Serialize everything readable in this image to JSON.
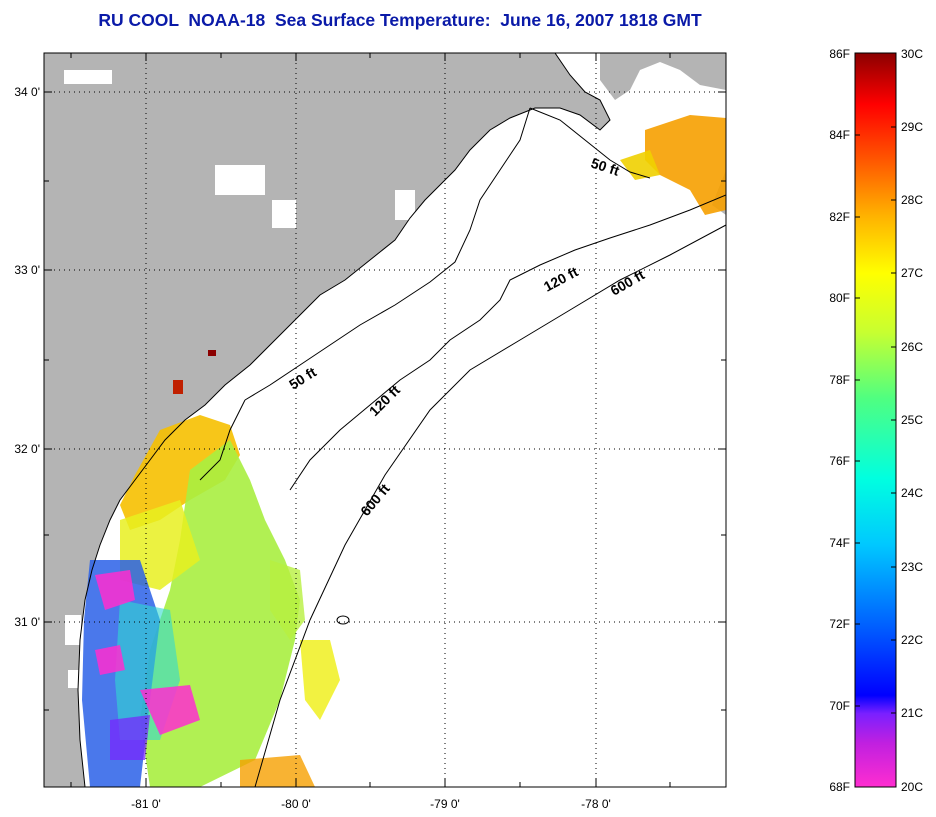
{
  "title": "RU COOL  NOAA-18  Sea Surface Temperature:  June 16, 2007 1818 GMT",
  "map": {
    "latitude_labels": [
      "34 0'",
      "33 0'",
      "32 0'",
      "31 0'"
    ],
    "longitude_labels": [
      "-81 0'",
      "-80 0'",
      "-79 0'",
      "-78 0'"
    ],
    "bathymetry_contours": [
      {
        "depth": "50 ft",
        "labels": [
          "50 ft",
          "50 ft"
        ]
      },
      {
        "depth": "120 ft",
        "labels": [
          "120 ft",
          "120 ft"
        ]
      },
      {
        "depth": "600 ft",
        "labels": [
          "600 ft",
          "600 ft"
        ]
      }
    ],
    "colors": {
      "land": "#b4b4b4",
      "no_data": "#ffffff",
      "frame": "#000000"
    }
  },
  "colorbar": {
    "fahrenheit_labels": [
      "86F",
      "84F",
      "82F",
      "80F",
      "78F",
      "76F",
      "74F",
      "72F",
      "70F",
      "68F"
    ],
    "celsius_labels": [
      "30C",
      "29C",
      "28C",
      "27C",
      "26C",
      "25C",
      "24C",
      "23C",
      "22C",
      "21C",
      "20C"
    ],
    "range_celsius": [
      20,
      30
    ],
    "gradient_colors": [
      "#ff2dd0",
      "#7a20ff",
      "#0000ff",
      "#0070ff",
      "#00e0ff",
      "#50ff90",
      "#c8ff20",
      "#ffff00",
      "#ffb000",
      "#ff5000",
      "#ff0000",
      "#8b0000"
    ]
  }
}
